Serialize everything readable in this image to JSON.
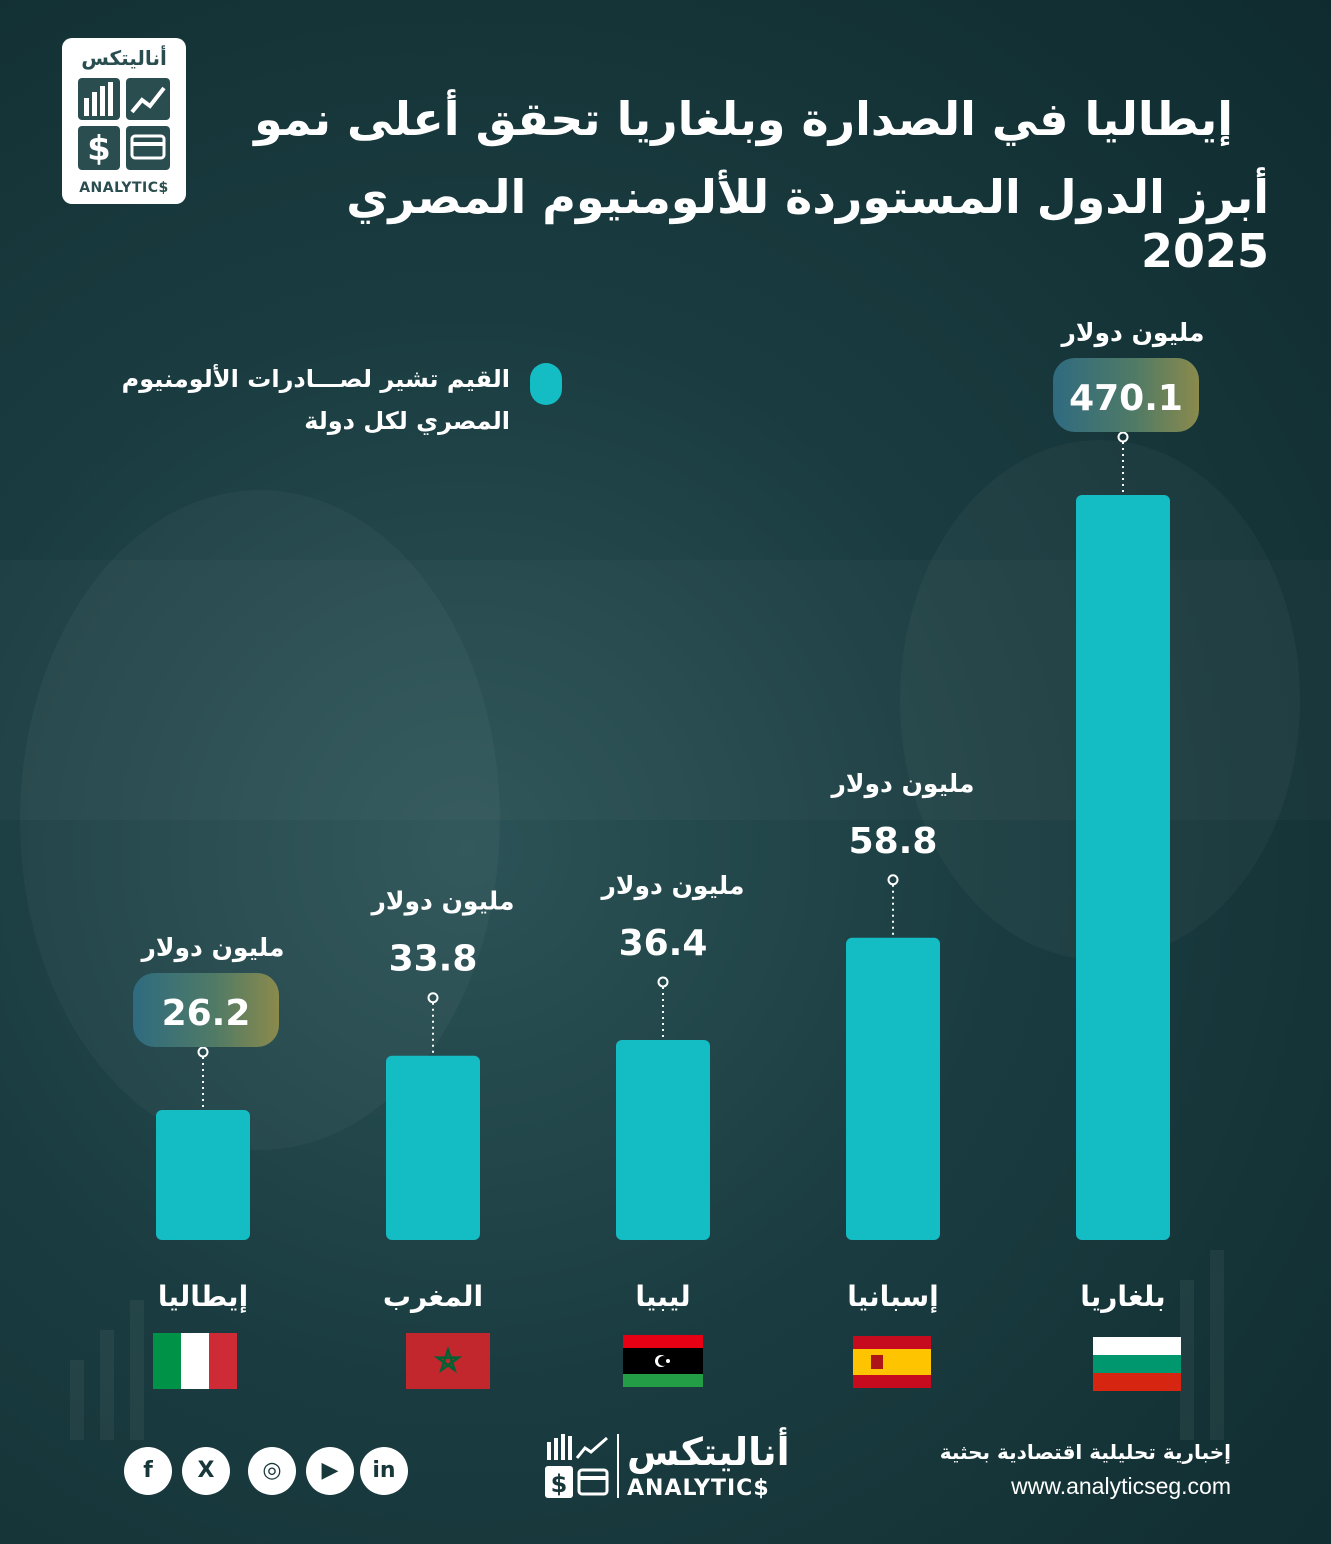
{
  "brand": {
    "logo_ar": "أناليتكس",
    "logo_en": "ANALYTIC$"
  },
  "title": {
    "line1": "إيطاليا في الصدارة وبلغاريا تحقق أعلى نمو",
    "line2": "أبرز الدول المستوردة للألومنيوم المصري 2025"
  },
  "legend": {
    "line1": "القيم تشير لصـــادرات الألومنيوم",
    "line2": "المصري  لكل دولة",
    "color": "#14bcc4"
  },
  "chart_data": {
    "type": "bar",
    "unit_label": "مليون دولار",
    "categories": [
      "إيطاليا",
      "المغرب",
      "ليبيا",
      "إسبانيا",
      "بلغاريا"
    ],
    "values": [
      26.2,
      33.8,
      36.4,
      58.8,
      470.1
    ],
    "value_labels": [
      "26.2",
      "33.8",
      "36.4",
      "58.8",
      "470.1"
    ],
    "highlighted": [
      "إيطاليا",
      "بلغاريا"
    ],
    "bar_color": "#14bcc4",
    "scale": "non-linear (illustrative)"
  },
  "flags": [
    "italy-flag",
    "morocco-flag",
    "libya-flag",
    "spain-flag",
    "bulgaria-flag"
  ],
  "footer": {
    "social": [
      "facebook-icon",
      "x-icon",
      "instagram-icon",
      "youtube-icon",
      "linkedin-icon"
    ],
    "social_glyphs": [
      "f",
      "X",
      "◎",
      "▶",
      "in"
    ],
    "tagline": "إخبارية تحليلية اقتصادية بحثية",
    "website": "www.analyticseg.com"
  }
}
